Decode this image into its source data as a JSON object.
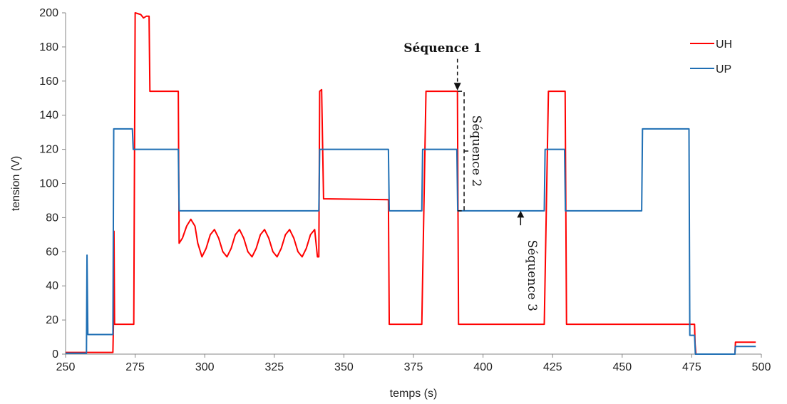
{
  "chart_data": {
    "type": "line",
    "xlabel": "temps (s)",
    "ylabel": "tension (V)",
    "xlim": [
      250,
      500
    ],
    "ylim": [
      0,
      200
    ],
    "x_ticks": [
      250,
      275,
      300,
      325,
      350,
      375,
      400,
      425,
      450,
      475,
      500
    ],
    "y_ticks": [
      0,
      20,
      40,
      60,
      80,
      100,
      120,
      140,
      160,
      180,
      200
    ],
    "grid": false,
    "legend_position": "top-right",
    "series": [
      {
        "name": "UH",
        "color": "#ff0000",
        "points": [
          [
            250,
            1
          ],
          [
            267,
            1
          ],
          [
            267.2,
            17.5
          ],
          [
            267.4,
            72
          ],
          [
            267.6,
            17.5
          ],
          [
            274.5,
            17.5
          ],
          [
            275,
            200
          ],
          [
            277,
            199
          ],
          [
            278,
            197
          ],
          [
            279,
            198
          ],
          [
            280,
            198
          ],
          [
            280.3,
            154
          ],
          [
            290.5,
            154
          ],
          [
            290.8,
            65
          ],
          [
            292,
            68
          ],
          [
            293.5,
            75
          ],
          [
            295,
            79
          ],
          [
            296.5,
            75
          ],
          [
            297.5,
            65
          ],
          [
            299,
            57
          ],
          [
            300.5,
            62
          ],
          [
            302,
            70
          ],
          [
            303.5,
            73
          ],
          [
            305,
            68
          ],
          [
            306.5,
            60
          ],
          [
            308,
            57
          ],
          [
            309.5,
            62
          ],
          [
            311,
            70
          ],
          [
            312.5,
            73
          ],
          [
            314,
            68
          ],
          [
            315.5,
            60
          ],
          [
            317,
            57
          ],
          [
            318.5,
            62
          ],
          [
            320,
            70
          ],
          [
            321.5,
            73
          ],
          [
            323,
            68
          ],
          [
            324.5,
            60
          ],
          [
            326,
            57
          ],
          [
            327.5,
            62
          ],
          [
            329,
            70
          ],
          [
            330.5,
            73
          ],
          [
            332,
            68
          ],
          [
            333.5,
            60
          ],
          [
            335,
            57
          ],
          [
            336.5,
            62
          ],
          [
            338,
            70
          ],
          [
            339.5,
            73
          ],
          [
            340.5,
            57
          ],
          [
            341,
            57
          ],
          [
            341.3,
            154
          ],
          [
            342,
            155
          ],
          [
            342.7,
            91
          ],
          [
            366,
            90.5
          ],
          [
            366.3,
            17.5
          ],
          [
            378,
            17.5
          ],
          [
            379.5,
            154
          ],
          [
            390.8,
            154
          ],
          [
            391.2,
            17.5
          ],
          [
            422,
            17.5
          ],
          [
            423.5,
            154
          ],
          [
            429.5,
            154
          ],
          [
            430,
            17.5
          ],
          [
            476,
            17.5
          ],
          [
            476.2,
            6
          ],
          [
            476.5,
            0
          ],
          [
            490.5,
            0
          ],
          [
            490.7,
            7
          ],
          [
            498,
            7
          ]
        ]
      },
      {
        "name": "UP",
        "color": "#1f6fb4",
        "points": [
          [
            250,
            0.5
          ],
          [
            257.5,
            0.5
          ],
          [
            257.7,
            58
          ],
          [
            258,
            11.5
          ],
          [
            267,
            11.5
          ],
          [
            267.3,
            132
          ],
          [
            274,
            132
          ],
          [
            274.3,
            120
          ],
          [
            290.5,
            120
          ],
          [
            290.8,
            84
          ],
          [
            341,
            84
          ],
          [
            341.3,
            120
          ],
          [
            366,
            120
          ],
          [
            366.3,
            84
          ],
          [
            378,
            84
          ],
          [
            378.3,
            120
          ],
          [
            390.6,
            120
          ],
          [
            390.9,
            84
          ],
          [
            422,
            84
          ],
          [
            422.3,
            120
          ],
          [
            429.3,
            120
          ],
          [
            429.6,
            84
          ],
          [
            457,
            84
          ],
          [
            457.3,
            132
          ],
          [
            474,
            132
          ],
          [
            474.3,
            11
          ],
          [
            476,
            11
          ],
          [
            476.3,
            0
          ],
          [
            490.5,
            0
          ],
          [
            490.7,
            4.5
          ],
          [
            498,
            4.5
          ]
        ]
      }
    ],
    "annotations": [
      {
        "label": "Séquence 1"
      },
      {
        "label": "Séquence 2"
      },
      {
        "label": "Séquence 3"
      }
    ]
  }
}
